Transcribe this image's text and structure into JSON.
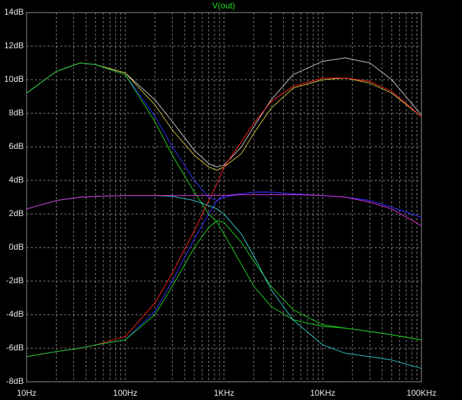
{
  "chart_data": {
    "type": "line",
    "title": "V(out)",
    "title_color": "#20e020",
    "x": [
      10,
      20,
      35,
      50,
      100,
      200,
      300,
      500,
      700,
      850,
      1000,
      1500,
      2000,
      3000,
      5000,
      10000,
      17000,
      30000,
      50000,
      100000
    ],
    "series": [
      {
        "color": "#c8c8c8",
        "values": [
          9.2,
          10.5,
          11,
          10.9,
          10.4,
          8.8,
          7.5,
          5.8,
          5,
          4.8,
          4.9,
          6,
          7.2,
          8.8,
          10.3,
          11.1,
          11.3,
          11,
          10,
          7.9
        ]
      },
      {
        "color": "#d0c040",
        "values": [
          9.2,
          10.5,
          11,
          10.9,
          10.4,
          8.5,
          7,
          5.5,
          4.8,
          4.6,
          4.8,
          5.6,
          6.8,
          8.3,
          9.5,
          10,
          10.1,
          9.8,
          9.2,
          7.8
        ]
      },
      {
        "color": "#ff2020",
        "values": [
          -6.5,
          -6.2,
          -6,
          -5.8,
          -5.3,
          -3.3,
          -1.5,
          1,
          2.8,
          3.8,
          4.8,
          6.3,
          7.4,
          8.7,
          9.6,
          10.1,
          10.1,
          9.9,
          9.3,
          7.8
        ]
      },
      {
        "color": "#3030ff",
        "values": [
          9.2,
          10.5,
          11,
          10.9,
          10.3,
          7.8,
          6,
          4,
          3,
          2.8,
          3,
          3.2,
          3.3,
          3.3,
          3.2,
          3.1,
          3,
          2.8,
          2.4,
          1.8
        ]
      },
      {
        "color": "#3030ff",
        "values": [
          -6.5,
          -6.2,
          -6,
          -5.8,
          -5.5,
          -3.8,
          -2,
          0.5,
          2,
          2.8,
          3.1,
          3.2,
          3.3,
          3.3,
          3.2,
          3.1,
          3,
          2.8,
          2.4,
          1.8
        ]
      },
      {
        "color": "#20d020",
        "values": [
          9.2,
          10.5,
          11,
          10.9,
          10.3,
          7.5,
          5.5,
          3.3,
          2,
          1.5,
          0.8,
          -1,
          -2.3,
          -3.5,
          -4.3,
          -4.7,
          -4.8,
          -5,
          -5.2,
          -5.5
        ]
      },
      {
        "color": "#20d020",
        "values": [
          -6.5,
          -6.2,
          -6,
          -5.8,
          -5.5,
          -4,
          -2.3,
          0,
          1.2,
          1.6,
          1.5,
          0.3,
          -0.8,
          -2.3,
          -3.7,
          -4.6,
          -4.8,
          -5,
          -5.2,
          -5.5
        ]
      },
      {
        "color": "#30c8c8",
        "values": [
          2.3,
          2.8,
          3,
          3.05,
          3.1,
          3.1,
          3.05,
          2.8,
          2.5,
          2.3,
          2,
          0.8,
          -0.5,
          -2.5,
          -4.3,
          -5.8,
          -6.3,
          -6.5,
          -6.7,
          -7.2
        ]
      },
      {
        "color": "#e030e0",
        "values": [
          2.3,
          2.8,
          3,
          3.05,
          3.1,
          3.1,
          3.1,
          3.1,
          3.1,
          3.1,
          3.1,
          3.15,
          3.15,
          3.15,
          3.15,
          3.1,
          3,
          2.7,
          2.3,
          1.3
        ]
      }
    ],
    "xlim": [
      10,
      100000
    ],
    "xlog": true,
    "xticks": [
      {
        "value": 10,
        "label": "10Hz"
      },
      {
        "value": 100,
        "label": "100Hz"
      },
      {
        "value": 1000,
        "label": "1KHz"
      },
      {
        "value": 10000,
        "label": "10KHz"
      },
      {
        "value": 100000,
        "label": "100KHz"
      }
    ],
    "xminorticks": [
      20,
      30,
      40,
      50,
      60,
      70,
      80,
      90,
      200,
      300,
      400,
      500,
      600,
      700,
      800,
      900,
      2000,
      3000,
      4000,
      5000,
      6000,
      7000,
      8000,
      9000,
      20000,
      30000,
      40000,
      50000,
      60000,
      70000,
      80000,
      90000
    ],
    "ylim": [
      -8,
      14
    ],
    "yticks": [
      {
        "value": -8,
        "label": "-8dB"
      },
      {
        "value": -6,
        "label": "-6dB"
      },
      {
        "value": -4,
        "label": "-4dB"
      },
      {
        "value": -2,
        "label": "-2dB"
      },
      {
        "value": 0,
        "label": "0dB"
      },
      {
        "value": 2,
        "label": "2dB"
      },
      {
        "value": 4,
        "label": "4dB"
      },
      {
        "value": 6,
        "label": "6dB"
      },
      {
        "value": 8,
        "label": "8dB"
      },
      {
        "value": 10,
        "label": "10dB"
      },
      {
        "value": 12,
        "label": "12dB"
      },
      {
        "value": 14,
        "label": "14dB"
      }
    ],
    "grid": true
  }
}
